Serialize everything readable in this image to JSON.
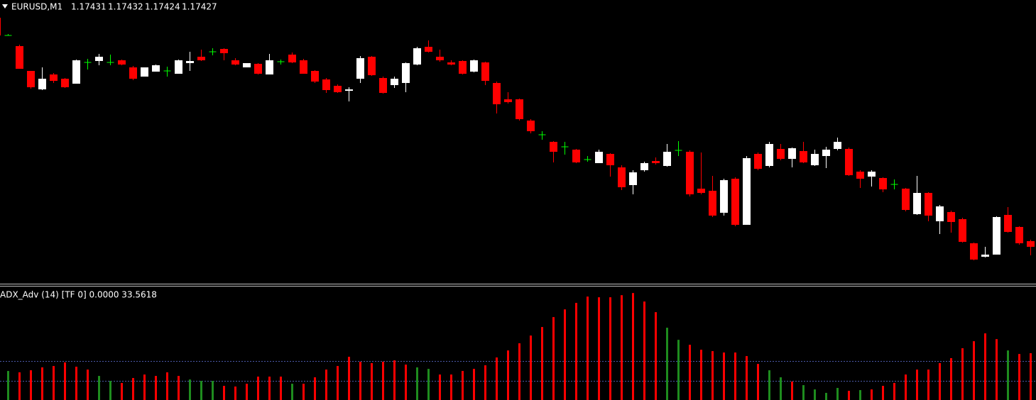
{
  "chart_data": [
    {
      "type": "candlestick",
      "title": "EURUSD,M1",
      "header_values": [
        1.17431,
        1.17432,
        1.17424,
        1.17427
      ],
      "ylim": [
        1.17333,
        1.18123
      ],
      "up_color": "#ffffff",
      "down_color": "#ff0000",
      "doji_color": "#00ff00",
      "open": [
        1.18073,
        1.18023,
        1.17993,
        1.17923,
        1.17871,
        1.17913,
        1.17901,
        1.17887,
        1.17947,
        1.17951,
        1.17947,
        1.17953,
        1.17933,
        1.17907,
        1.17921,
        1.17923,
        1.17915,
        1.17945,
        1.17963,
        1.17977,
        1.17985,
        1.17953,
        1.17933,
        1.17943,
        1.17913,
        1.17949,
        1.17969,
        1.17953,
        1.17923,
        1.17899,
        1.17881,
        1.17867,
        1.17901,
        1.17963,
        1.17903,
        1.17883,
        1.17889,
        1.17941,
        1.17991,
        1.17963,
        1.17947,
        1.17951,
        1.17921,
        1.17947,
        1.17889,
        1.17843,
        1.17843,
        1.17783,
        1.17743,
        1.17723,
        1.17709,
        1.17701,
        1.17673,
        1.17663,
        1.17689,
        1.17651,
        1.17601,
        1.17643,
        1.17669,
        1.17655,
        1.17699,
        1.17695,
        1.17591,
        1.17585,
        1.17523,
        1.17619,
        1.17489,
        1.17689,
        1.17655,
        1.17703,
        1.17675,
        1.17697,
        1.17657,
        1.17683,
        1.17703,
        1.17703,
        1.17639,
        1.17625,
        1.17621,
        1.17603,
        1.17591,
        1.17519,
        1.17579,
        1.17499,
        1.17525,
        1.17505,
        1.17437,
        1.17399,
        1.17405,
        1.17517,
        1.17483,
        1.17443
      ],
      "high": [
        1.18083,
        1.18027,
        1.17997,
        1.17923,
        1.17933,
        1.17917,
        1.17903,
        1.17955,
        1.17957,
        1.17971,
        1.17969,
        1.17955,
        1.17937,
        1.17933,
        1.17941,
        1.17935,
        1.17955,
        1.17977,
        1.17983,
        1.17987,
        1.17987,
        1.17959,
        1.17945,
        1.17945,
        1.17971,
        1.17955,
        1.17975,
        1.17957,
        1.17925,
        1.17903,
        1.17885,
        1.17877,
        1.17965,
        1.17965,
        1.17907,
        1.17907,
        1.17947,
        1.17991,
        1.18009,
        1.17983,
        1.17953,
        1.17953,
        1.17955,
        1.17949,
        1.17893,
        1.17863,
        1.17845,
        1.17787,
        1.17753,
        1.17725,
        1.17723,
        1.17703,
        1.17683,
        1.17701,
        1.17691,
        1.17657,
        1.17643,
        1.17667,
        1.17679,
        1.17717,
        1.17725,
        1.17699,
        1.17693,
        1.17627,
        1.17619,
        1.17623,
        1.17683,
        1.17693,
        1.17723,
        1.17717,
        1.17707,
        1.17723,
        1.17701,
        1.17709,
        1.17735,
        1.17707,
        1.17643,
        1.17643,
        1.17623,
        1.17617,
        1.17593,
        1.17627,
        1.17581,
        1.17545,
        1.17529,
        1.17509,
        1.17439,
        1.17427,
        1.17513,
        1.17539,
        1.17485,
        1.17447
      ],
      "low": [
        1.18013,
        1.18023,
        1.17929,
        1.17873,
        1.17869,
        1.17889,
        1.17875,
        1.17887,
        1.17927,
        1.17939,
        1.17939,
        1.17939,
        1.17897,
        1.17907,
        1.17921,
        1.17907,
        1.17915,
        1.17923,
        1.17951,
        1.17967,
        1.17953,
        1.17939,
        1.17933,
        1.17913,
        1.17913,
        1.17941,
        1.17945,
        1.17915,
        1.17889,
        1.17861,
        1.17861,
        1.17837,
        1.17889,
        1.17909,
        1.17859,
        1.17875,
        1.17863,
        1.17939,
        1.17975,
        1.17949,
        1.17939,
        1.17913,
        1.17919,
        1.17883,
        1.17803,
        1.17831,
        1.17783,
        1.17747,
        1.17729,
        1.17665,
        1.17687,
        1.17663,
        1.17667,
        1.17663,
        1.17625,
        1.17587,
        1.17575,
        1.17639,
        1.17659,
        1.17653,
        1.17683,
        1.17569,
        1.17575,
        1.17511,
        1.17515,
        1.17485,
        1.17489,
        1.17643,
        1.17651,
        1.17671,
        1.17651,
        1.17663,
        1.17655,
        1.17649,
        1.17699,
        1.17627,
        1.17593,
        1.17597,
        1.17581,
        1.17589,
        1.17527,
        1.17517,
        1.17499,
        1.17463,
        1.17467,
        1.17439,
        1.17389,
        1.17397,
        1.17405,
        1.17467,
        1.17433,
        1.17403
      ],
      "close": [
        1.18023,
        1.18023,
        1.17929,
        1.17877,
        1.17901,
        1.17895,
        1.17877,
        1.17953,
        1.17947,
        1.17963,
        1.17947,
        1.17941,
        1.17901,
        1.17933,
        1.17939,
        1.17923,
        1.17953,
        1.17951,
        1.17953,
        1.17977,
        1.17973,
        1.17941,
        1.17945,
        1.17915,
        1.17953,
        1.17949,
        1.17947,
        1.17915,
        1.17893,
        1.17869,
        1.17863,
        1.17871,
        1.17959,
        1.17911,
        1.17861,
        1.17901,
        1.17945,
        1.17987,
        1.17977,
        1.17953,
        1.17941,
        1.17915,
        1.17953,
        1.17895,
        1.17829,
        1.17835,
        1.17787,
        1.17753,
        1.17743,
        1.17695,
        1.17709,
        1.17665,
        1.17673,
        1.17695,
        1.17657,
        1.17595,
        1.17637,
        1.17663,
        1.17663,
        1.17695,
        1.17699,
        1.17575,
        1.17579,
        1.17515,
        1.17615,
        1.17489,
        1.17677,
        1.17647,
        1.17717,
        1.17675,
        1.17705,
        1.17665,
        1.17689,
        1.17701,
        1.17723,
        1.17629,
        1.17619,
        1.17639,
        1.17589,
        1.17603,
        1.17531,
        1.17579,
        1.17515,
        1.17541,
        1.17497,
        1.17441,
        1.17391,
        1.17405,
        1.17511,
        1.17469,
        1.17437,
        1.17427
      ]
    },
    {
      "type": "histogram",
      "title": "ADX_Adv (14) [TF 0] 0.0000 33.5618",
      "ylim": [
        0,
        113
      ],
      "levels": [
        20,
        40
      ],
      "level_color": "#4a5aa8",
      "values": [
        null,
        30,
        28.6,
        30.7,
        33.6,
        35,
        38.6,
        34.3,
        31.4,
        25,
        20,
        17.9,
        22.9,
        26.4,
        25,
        28.6,
        25,
        21.4,
        20,
        20,
        15,
        14.3,
        17.1,
        24.3,
        24.3,
        24.3,
        17.1,
        17.1,
        23.6,
        31.4,
        35,
        44.3,
        39.3,
        37.9,
        39.3,
        40.7,
        36.4,
        33.6,
        32.1,
        26.4,
        26.4,
        30,
        32.1,
        35.7,
        43.6,
        50.7,
        57.9,
        65.7,
        74.3,
        84.3,
        92.1,
        98.6,
        105,
        104.3,
        104.3,
        106.4,
        108.6,
        100,
        89.3,
        73.6,
        61.4,
        56.4,
        51.4,
        50,
        48.6,
        48.6,
        45,
        37.1,
        30.7,
        23.6,
        19.3,
        15.7,
        11.4,
        7.9,
        12.9,
        10,
        10.7,
        11.4,
        15,
        17.9,
        26.4,
        31.4,
        31.4,
        37.9,
        42.9,
        52.9,
        60,
        67.9,
        62.1,
        50.7,
        47.1,
        47.9
      ],
      "colors": [
        null,
        "#1e8c1e",
        "#ff0000",
        "#ff0000",
        "#ff0000",
        "#ff0000",
        "#ff0000",
        "#ff0000",
        "#ff0000",
        "#1e8c1e",
        "#1e8c1e",
        "#ff0000",
        "#ff0000",
        "#ff0000",
        "#ff0000",
        "#ff0000",
        "#ff0000",
        "#1e8c1e",
        "#1e8c1e",
        "#1e8c1e",
        "#ff0000",
        "#ff0000",
        "#ff0000",
        "#ff0000",
        "#ff0000",
        "#ff0000",
        "#1e8c1e",
        "#ff0000",
        "#ff0000",
        "#ff0000",
        "#ff0000",
        "#ff0000",
        "#ff0000",
        "#ff0000",
        "#ff0000",
        "#ff0000",
        "#ff0000",
        "#1e8c1e",
        "#1e8c1e",
        "#ff0000",
        "#ff0000",
        "#ff0000",
        "#ff0000",
        "#ff0000",
        "#ff0000",
        "#ff0000",
        "#ff0000",
        "#ff0000",
        "#ff0000",
        "#ff0000",
        "#ff0000",
        "#ff0000",
        "#ff0000",
        "#ff0000",
        "#ff0000",
        "#ff0000",
        "#ff0000",
        "#ff0000",
        "#ff0000",
        "#1e8c1e",
        "#1e8c1e",
        "#ff0000",
        "#ff0000",
        "#ff0000",
        "#ff0000",
        "#ff0000",
        "#ff0000",
        "#ff0000",
        "#1e8c1e",
        "#1e8c1e",
        "#ff0000",
        "#1e8c1e",
        "#1e8c1e",
        "#1e8c1e",
        "#1e8c1e",
        "#ff0000",
        "#1e8c1e",
        "#ff0000",
        "#ff0000",
        "#ff0000",
        "#ff0000",
        "#ff0000",
        "#ff0000",
        "#ff0000",
        "#ff0000",
        "#ff0000",
        "#ff0000",
        "#ff0000",
        "#ff0000",
        "#1e8c1e",
        "#ff0000",
        "#ff0000"
      ]
    }
  ]
}
